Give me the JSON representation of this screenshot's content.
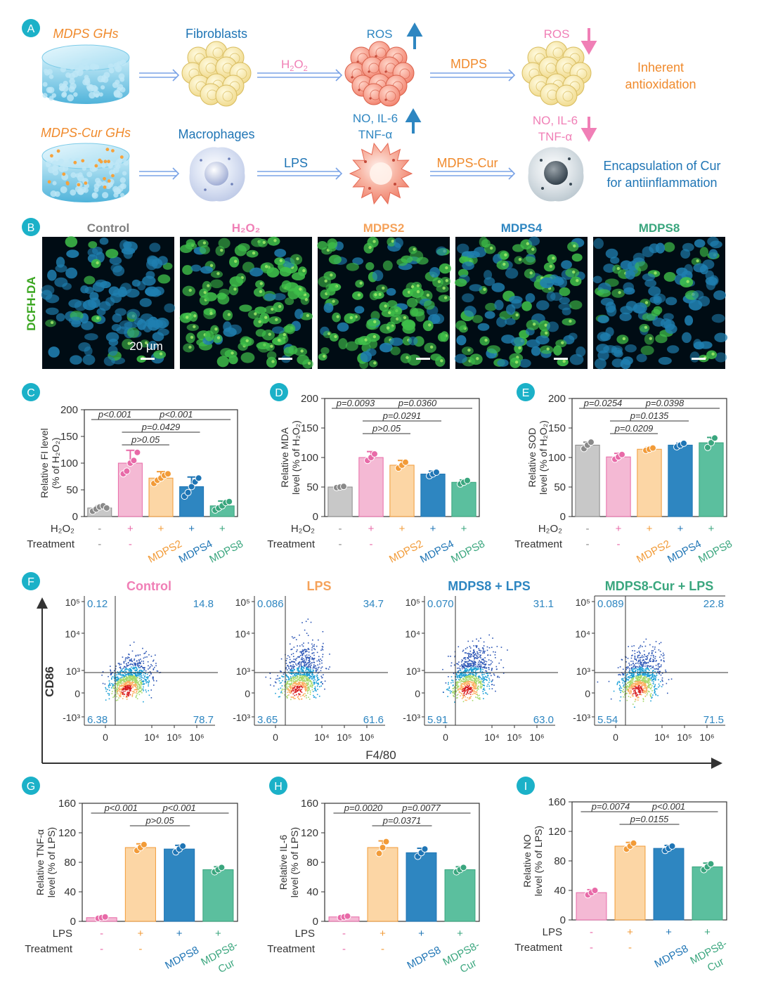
{
  "colors": {
    "gray": "#c8c8c8",
    "pink": "#f4b9d4",
    "orange": "#fcd6a5",
    "blue": "#2e86c1",
    "teal": "#5bbf9e",
    "pink_dot": "#e86aa8",
    "orange_dot": "#f29b38",
    "blue_dot": "#1f75b5",
    "teal_dot": "#3aa67e",
    "panel_label": "#1bb1c8",
    "mdps_orange": "#f08a2c",
    "gh_blue": "#8fd3ec"
  },
  "panelA": {
    "label": "A",
    "gh1": "MDPS GHs",
    "gh2": "MDPS-Cur GHs",
    "cell1": "Fibroblasts",
    "cell2": "Macrophages",
    "stim1_main": "H",
    "stim1_sub": "2",
    "stim1_tail": "O",
    "stim1_sub2": "2",
    "stim2": "LPS",
    "ros_up": "ROS",
    "ros_down": "ROS",
    "treat1": "MDPS",
    "treat2": "MDPS-Cur",
    "infl_up_1": "NO, IL-6",
    "infl_up_2": "TNF-α",
    "infl_down_1": "NO, IL-6",
    "infl_down_2": "TNF-α",
    "outcome1_l1": "Inherent",
    "outcome1_l2": "antioxidation",
    "outcome2_l1": "Encapsulation of Cur",
    "outcome2_l2": "for antiinflammation"
  },
  "panelB": {
    "label": "B",
    "side_label": "DCFH-DA",
    "scale_bar": "20 µm",
    "titles": [
      {
        "text": "Control",
        "color": "#7f7f7f"
      },
      {
        "text": "H₂O₂",
        "color": "#f07fb6"
      },
      {
        "text": "MDPS2",
        "color": "#f5a25a"
      },
      {
        "text": "MDPS4",
        "color": "#2e86c1"
      },
      {
        "text": "MDPS8",
        "color": "#3aa67e"
      }
    ]
  },
  "row1_labels": {
    "stim_label": "H₂O₂",
    "treat_label": "Treatment",
    "stim_signs": [
      "-",
      "+",
      "+",
      "+",
      "+"
    ],
    "treat_signs": [
      "-",
      "-"
    ],
    "treat_names": [
      "MDPS2",
      "MDPS4",
      "MDPS8"
    ]
  },
  "row3_labels": {
    "stim_label": "LPS",
    "treat_label": "Treatment",
    "stim_signs": [
      "-",
      "+",
      "+",
      "+"
    ],
    "treat_signs": [
      "-",
      "-"
    ],
    "treat_names": [
      "MDPS8",
      "MDPS8-",
      "Cur"
    ]
  },
  "chart_data": [
    {
      "id": "C",
      "type": "bar",
      "label": "C",
      "ylabel": [
        "Relative FI level",
        "(% of H₂O₂)"
      ],
      "ylim": [
        0,
        200
      ],
      "yticks": [
        0,
        50,
        100,
        150,
        200
      ],
      "categories": [
        "Control",
        "H2O2",
        "MDPS2",
        "MDPS4",
        "MDPS8"
      ],
      "values": [
        16,
        100,
        72,
        56,
        20
      ],
      "errors": [
        4,
        24,
        12,
        18,
        9
      ],
      "points": [
        [
          10,
          14,
          18,
          20,
          16
        ],
        [
          80,
          85,
          100,
          105,
          120
        ],
        [
          62,
          68,
          72,
          77,
          80
        ],
        [
          38,
          45,
          56,
          65,
          72
        ],
        [
          12,
          16,
          20,
          26,
          28
        ]
      ],
      "pvalues": [
        {
          "text": "p<0.001",
          "from": 0,
          "to": 1,
          "level": 0
        },
        {
          "text": "p<0.001",
          "from": 1,
          "to": 4,
          "level": 0
        },
        {
          "text": "p=0.0429",
          "from": 1,
          "to": 3,
          "level": 1
        },
        {
          "text": "p>0.05",
          "from": 1,
          "to": 2,
          "level": 2
        }
      ]
    },
    {
      "id": "D",
      "type": "bar",
      "label": "D",
      "ylabel": [
        "Relative MDA",
        "level (% of H₂O₂)"
      ],
      "ylim": [
        0,
        200
      ],
      "yticks": [
        0,
        50,
        100,
        150,
        200
      ],
      "categories": [
        "Control",
        "H2O2",
        "MDPS2",
        "MDPS4",
        "MDPS8"
      ],
      "values": [
        50,
        100,
        87,
        72,
        58
      ],
      "errors": [
        3,
        10,
        8,
        5,
        4
      ],
      "points": [
        [
          49,
          50,
          51
        ],
        [
          95,
          100,
          106
        ],
        [
          82,
          87,
          92
        ],
        [
          69,
          72,
          75
        ],
        [
          55,
          58,
          61
        ]
      ],
      "pvalues": [
        {
          "text": "p=0.0093",
          "from": 0,
          "to": 1,
          "level": 0
        },
        {
          "text": "p=0.0360",
          "from": 1,
          "to": 4,
          "level": 0
        },
        {
          "text": "p=0.0291",
          "from": 1,
          "to": 3,
          "level": 1
        },
        {
          "text": "p>0.05",
          "from": 1,
          "to": 2,
          "level": 2
        }
      ]
    },
    {
      "id": "E",
      "type": "bar",
      "label": "E",
      "ylabel": [
        "Relative SOD",
        "level (% of H₂O₂)"
      ],
      "ylim": [
        0,
        200
      ],
      "yticks": [
        0,
        50,
        100,
        150,
        200
      ],
      "categories": [
        "Control",
        "H2O2",
        "MDPS2",
        "MDPS4",
        "MDPS8"
      ],
      "values": [
        121,
        101,
        114,
        121,
        125
      ],
      "errors": [
        5,
        6,
        3,
        3,
        9
      ],
      "points": [
        [
          115,
          121,
          126
        ],
        [
          97,
          101,
          105
        ],
        [
          112,
          114,
          116
        ],
        [
          118,
          121,
          124
        ],
        [
          117,
          125,
          133
        ]
      ],
      "pvalues": [
        {
          "text": "p=0.0254",
          "from": 0,
          "to": 1,
          "level": 0
        },
        {
          "text": "p=0.0398",
          "from": 1,
          "to": 4,
          "level": 0
        },
        {
          "text": "p=0.0135",
          "from": 1,
          "to": 3,
          "level": 1
        },
        {
          "text": "p=0.0209",
          "from": 1,
          "to": 2,
          "level": 2
        }
      ]
    },
    {
      "id": "G",
      "type": "bar",
      "label": "G",
      "ylabel": [
        "Relative TNF-α",
        "level (% of LPS)"
      ],
      "ylim": [
        0,
        160
      ],
      "yticks": [
        0,
        40,
        80,
        120,
        160
      ],
      "categories": [
        "Control",
        "LPS",
        "MDPS8",
        "MDPS8-Cur"
      ],
      "values": [
        5,
        100,
        98,
        70
      ],
      "errors": [
        1,
        5,
        5,
        4
      ],
      "points": [
        [
          4,
          5,
          6
        ],
        [
          96,
          100,
          104
        ],
        [
          94,
          98,
          102
        ],
        [
          67,
          70,
          73
        ]
      ],
      "pvalues": [
        {
          "text": "p<0.001",
          "from": 0,
          "to": 1,
          "level": 0
        },
        {
          "text": "p<0.001",
          "from": 1,
          "to": 3,
          "level": 0
        },
        {
          "text": "p>0.05",
          "from": 1,
          "to": 2,
          "level": 1
        }
      ]
    },
    {
      "id": "H",
      "type": "bar",
      "label": "H",
      "ylabel": [
        "Relative IL-6",
        "level (% of LPS)"
      ],
      "ylim": [
        0,
        160
      ],
      "yticks": [
        0,
        40,
        80,
        120,
        160
      ],
      "categories": [
        "Control",
        "LPS",
        "MDPS8",
        "MDPS8-Cur"
      ],
      "values": [
        6,
        100,
        93,
        70
      ],
      "errors": [
        1,
        9,
        6,
        4
      ],
      "points": [
        [
          5,
          6,
          7
        ],
        [
          92,
          100,
          108
        ],
        [
          88,
          93,
          98
        ],
        [
          67,
          70,
          73
        ]
      ],
      "pvalues": [
        {
          "text": "p=0.0020",
          "from": 0,
          "to": 1,
          "level": 0
        },
        {
          "text": "p=0.0077",
          "from": 1,
          "to": 3,
          "level": 0
        },
        {
          "text": "p=0.0371",
          "from": 1,
          "to": 2,
          "level": 1
        }
      ]
    },
    {
      "id": "I",
      "type": "bar",
      "label": "I",
      "ylabel": [
        "Relative NO",
        "level (% of LPS)"
      ],
      "ylim": [
        0,
        160
      ],
      "yticks": [
        0,
        40,
        80,
        120,
        160
      ],
      "categories": [
        "Control",
        "LPS",
        "MDPS8",
        "MDPS8-Cur"
      ],
      "values": [
        37,
        100,
        97,
        72
      ],
      "errors": [
        4,
        5,
        4,
        5
      ],
      "points": [
        [
          34,
          37,
          40
        ],
        [
          96,
          100,
          104
        ],
        [
          94,
          97,
          100
        ],
        [
          68,
          72,
          76
        ]
      ],
      "pvalues": [
        {
          "text": "p=0.0074",
          "from": 0,
          "to": 1,
          "level": 0
        },
        {
          "text": "p<0.001",
          "from": 1,
          "to": 3,
          "level": 0
        },
        {
          "text": "p=0.0155",
          "from": 1,
          "to": 2,
          "level": 1
        }
      ]
    }
  ],
  "panelF": {
    "label": "F",
    "yaxis": "CD86",
    "xaxis": "F4/80",
    "yticks": [
      "10⁵",
      "10⁴",
      "10³",
      "0",
      "-10³"
    ],
    "xticks": [
      "0",
      "10⁴",
      "10⁵",
      "10⁶"
    ],
    "plots": [
      {
        "title": "Control",
        "color": "#f07fb6",
        "q": [
          "0.12",
          "14.8",
          "6.38",
          "78.7"
        ]
      },
      {
        "title": "LPS",
        "color": "#f5a25a",
        "q": [
          "0.086",
          "34.7",
          "3.65",
          "61.6"
        ]
      },
      {
        "title": "MDPS8 + LPS",
        "color": "#2e86c1",
        "q": [
          "0.070",
          "31.1",
          "5.91",
          "63.0"
        ]
      },
      {
        "title": "MDPS8-Cur + LPS",
        "color": "#3aa67e",
        "q": [
          "0.089",
          "22.8",
          "5.54",
          "71.5"
        ]
      }
    ]
  }
}
